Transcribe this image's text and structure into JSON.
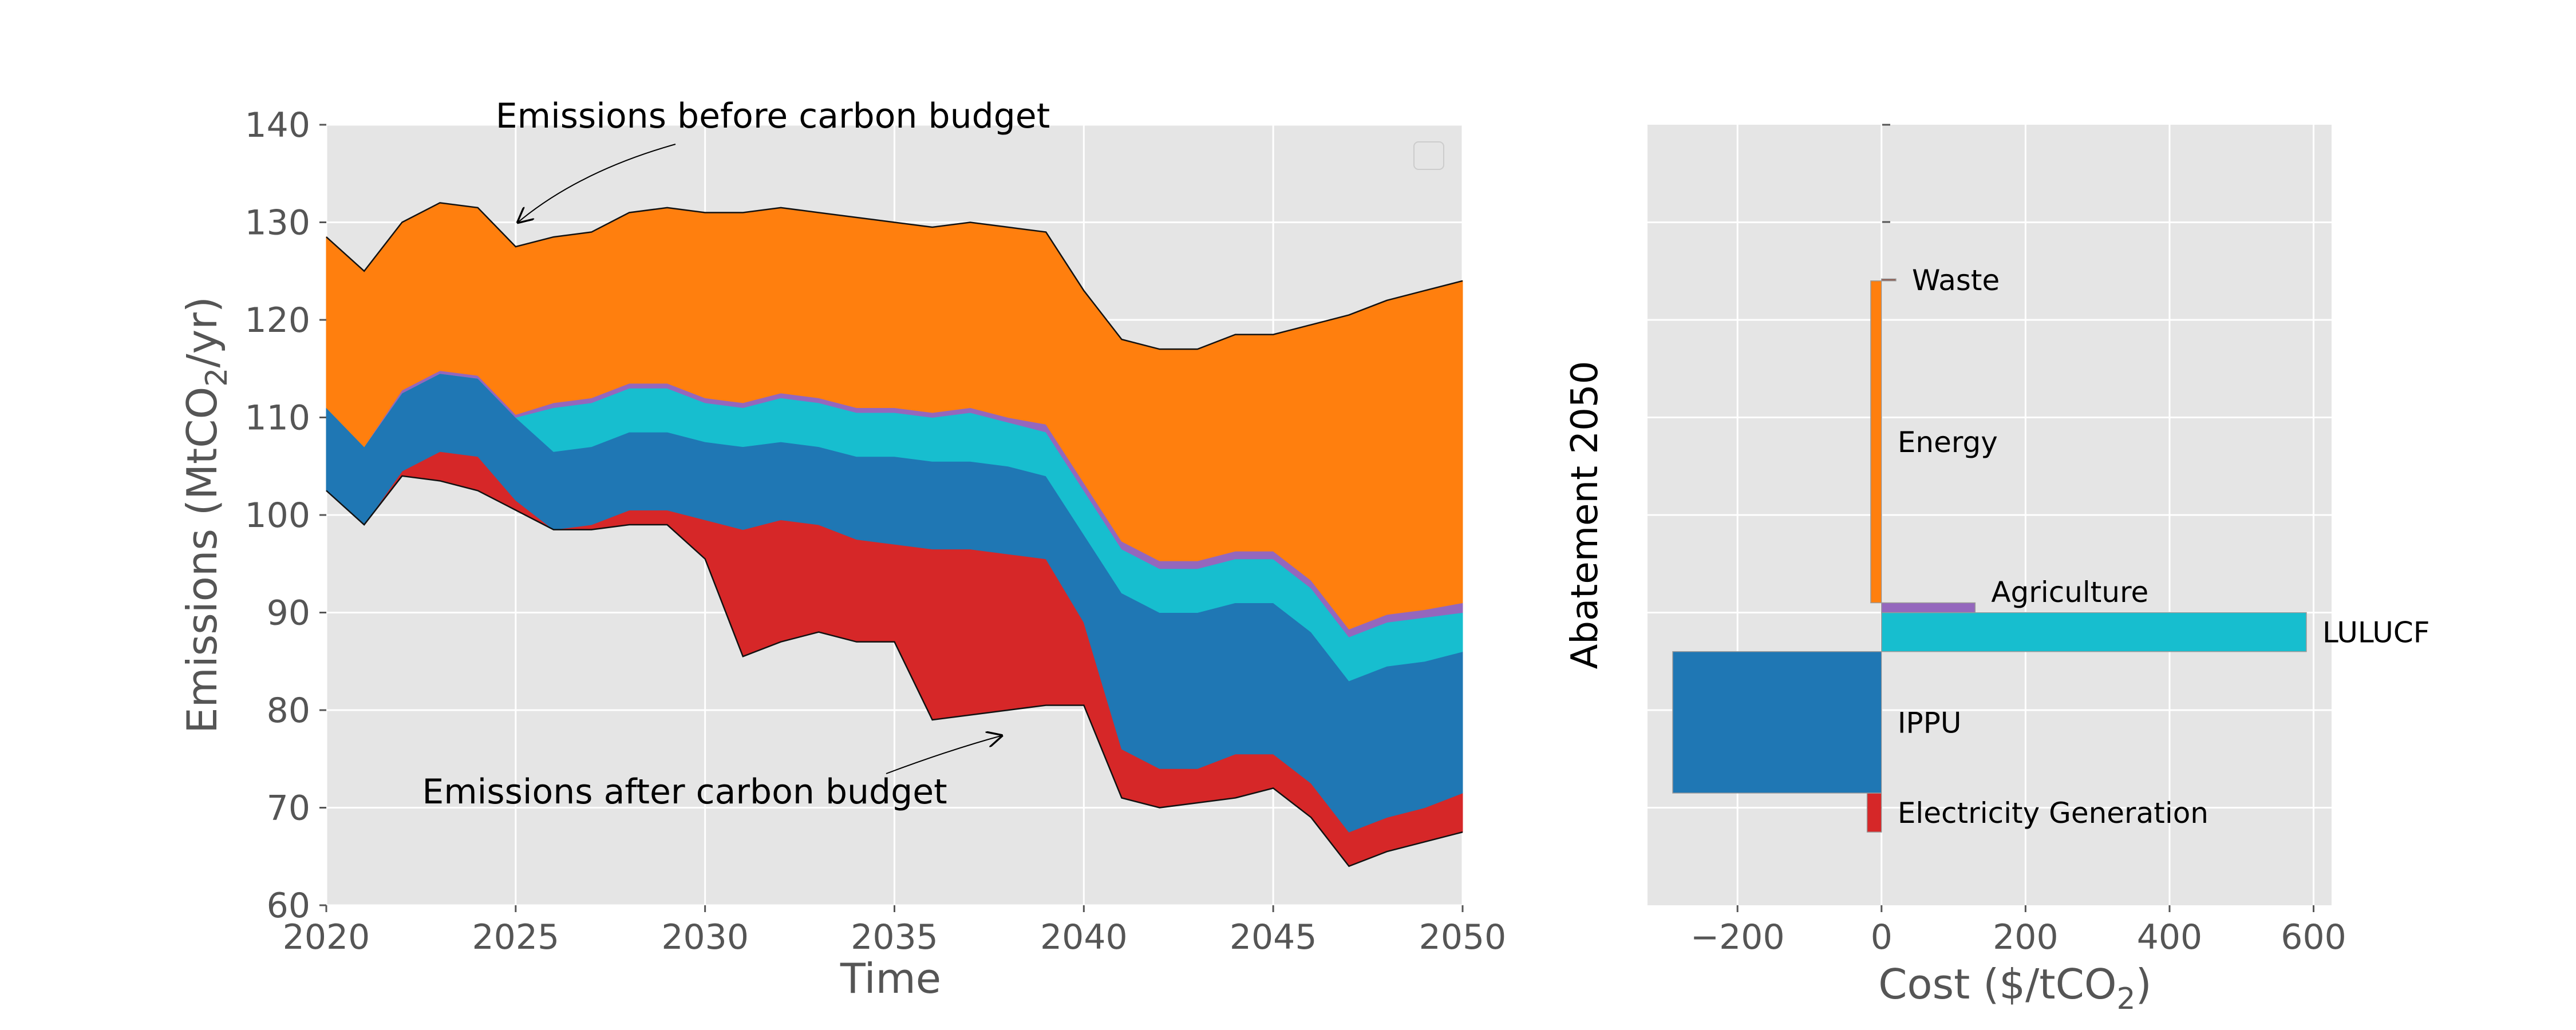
{
  "chart_data": [
    {
      "type": "area",
      "stacked": true,
      "xlabel": "Time",
      "ylabel_main": "Emissions (MtCO",
      "ylabel_sub": "2",
      "ylabel_end": "/yr)",
      "xlim": [
        2020,
        2050
      ],
      "ylim": [
        60,
        140
      ],
      "xticks": [
        "2020",
        "2025",
        "2030",
        "2035",
        "2040",
        "2045",
        "2050"
      ],
      "yticks": [
        "60",
        "70",
        "80",
        "90",
        "100",
        "110",
        "120",
        "130",
        "140"
      ],
      "grid": true,
      "legend": "top-right (empty)",
      "x": [
        2020,
        2021,
        2022,
        2023,
        2024,
        2025,
        2026,
        2027,
        2028,
        2029,
        2030,
        2031,
        2032,
        2033,
        2034,
        2035,
        2036,
        2037,
        2038,
        2039,
        2040,
        2041,
        2042,
        2043,
        2044,
        2045,
        2046,
        2047,
        2048,
        2049,
        2050
      ],
      "series": [
        {
          "color": "#d62728",
          "values": [
            102.5,
            99.0,
            104.5,
            106.5,
            106.0,
            101.5,
            98.5,
            99.0,
            100.5,
            100.5,
            99.5,
            98.5,
            99.5,
            99.0,
            97.5,
            97.0,
            96.5,
            96.5,
            96.0,
            95.5,
            89.0,
            76.0,
            74.0,
            74.0,
            75.5,
            75.5,
            72.5,
            67.5,
            69.0,
            70.0,
            71.5
          ]
        },
        {
          "color": "#1f77b4",
          "values": [
            111.0,
            107.0,
            112.5,
            114.5,
            114.0,
            110.0,
            106.5,
            107.0,
            108.5,
            108.5,
            107.5,
            107.0,
            107.5,
            107.0,
            106.0,
            106.0,
            105.5,
            105.5,
            105.0,
            104.0,
            98.0,
            92.0,
            90.0,
            90.0,
            91.0,
            91.0,
            88.0,
            83.0,
            84.5,
            85.0,
            86.0
          ]
        },
        {
          "color": "#17becf",
          "values": [
            111.0,
            107.0,
            112.5,
            114.5,
            114.0,
            110.0,
            111.0,
            111.5,
            113.0,
            113.0,
            111.5,
            111.0,
            112.0,
            111.5,
            110.5,
            110.5,
            110.0,
            110.5,
            109.5,
            108.5,
            102.5,
            96.5,
            94.5,
            94.5,
            95.5,
            95.5,
            92.5,
            87.5,
            89.0,
            89.5,
            90.0
          ]
        },
        {
          "color": "#9467bd",
          "values": [
            111.0,
            107.0,
            112.8,
            114.8,
            114.3,
            110.3,
            111.5,
            112.0,
            113.5,
            113.5,
            112.0,
            111.5,
            112.5,
            112.0,
            111.0,
            111.0,
            110.5,
            111.0,
            110.0,
            109.3,
            103.3,
            97.3,
            95.3,
            95.3,
            96.3,
            96.3,
            93.3,
            88.3,
            89.8,
            90.3,
            91.0
          ]
        },
        {
          "color": "#ff7f0e",
          "values": [
            128.5,
            125.0,
            130.0,
            132.0,
            131.5,
            127.5,
            128.5,
            129.0,
            131.0,
            131.5,
            131.0,
            131.0,
            131.5,
            131.0,
            130.5,
            130.0,
            129.5,
            130.0,
            129.5,
            129.0,
            123.0,
            118.0,
            117.0,
            117.0,
            118.5,
            118.5,
            119.5,
            120.5,
            122.0,
            123.0,
            124.0
          ]
        }
      ],
      "lower_boundary": [
        102.5,
        99.0,
        104.0,
        103.5,
        102.5,
        100.5,
        98.5,
        98.5,
        99.0,
        99.0,
        95.5,
        85.5,
        87.0,
        88.0,
        87.0,
        87.0,
        79.0,
        79.5,
        80.0,
        80.5,
        80.5,
        71.0,
        70.0,
        70.5,
        71.0,
        72.0,
        69.0,
        64.0,
        65.5,
        66.5,
        67.5
      ],
      "annotations": [
        {
          "text": "Emissions before carbon budget",
          "xy": [
            2025,
            129.5
          ],
          "xytext": [
            2023.7,
            140.2
          ]
        },
        {
          "text": "Emissions after carbon budget",
          "xy": [
            2038,
            78
          ],
          "xytext": [
            2022.3,
            70.5
          ]
        }
      ]
    },
    {
      "type": "bar",
      "orientation": "horizontal",
      "title": "",
      "xlabel_main": "Cost  ($/tCO",
      "xlabel_sub": "2",
      "xlabel_end": ")",
      "ylabel": "Abatement 2050",
      "xlim": [
        -325,
        625
      ],
      "ylim": [
        60,
        140
      ],
      "xticks": [
        -200,
        0,
        200,
        400,
        600
      ],
      "xtick_labels": [
        "−200",
        "0",
        "200",
        "400",
        "600"
      ],
      "grid": true,
      "bars": [
        {
          "label": "Electricity Generation",
          "color": "#d62728",
          "cost": -20,
          "y_from": 67.5,
          "y_to": 71.5
        },
        {
          "label": "IPPU",
          "color": "#1f77b4",
          "cost": -290,
          "y_from": 71.5,
          "y_to": 86.0
        },
        {
          "label": "LULUCF",
          "color": "#17becf",
          "cost": 590,
          "y_from": 86.0,
          "y_to": 90.0
        },
        {
          "label": "Agriculture",
          "color": "#9467bd",
          "cost": 130,
          "y_from": 90.0,
          "y_to": 91.0
        },
        {
          "label": "Energy",
          "color": "#ff7f0e",
          "cost": -15,
          "y_from": 91.0,
          "y_to": 124.0
        },
        {
          "label": "Waste",
          "color": "#8c564b",
          "cost": 20,
          "y_from": 124.0,
          "y_to": 124.2
        }
      ]
    }
  ]
}
